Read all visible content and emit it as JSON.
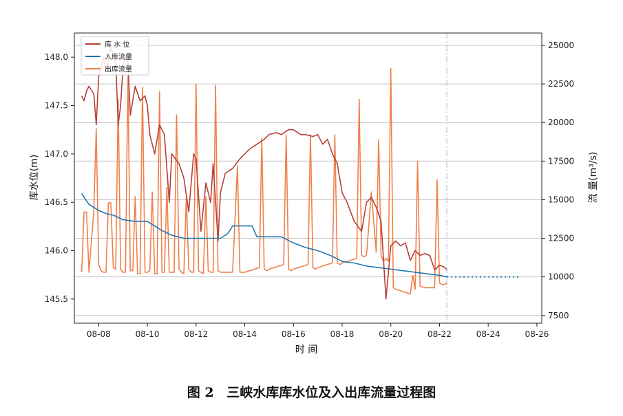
{
  "caption": {
    "fig_no": "图 2",
    "text": "三峡水库库水位及入出库流量过程图"
  },
  "chart_data": {
    "type": "line",
    "xlabel": "时 间",
    "ylabel_left": "库水位(m)",
    "ylabel_right": "流 量(m³/s)",
    "x_ticks": [
      "08-08",
      "08-10",
      "08-12",
      "08-14",
      "08-16",
      "08-18",
      "08-20",
      "08-22",
      "08-24",
      "08-26"
    ],
    "x_range": [
      7.0,
      26.2
    ],
    "y_left_ticks": [
      "148.0",
      "147.5",
      "147.0",
      "146.5",
      "146.0",
      "145.5"
    ],
    "y_left_range": [
      145.25,
      148.25
    ],
    "y_right_ticks": [
      "25000",
      "22500",
      "20000",
      "17500",
      "15000",
      "12500",
      "10000",
      "7500"
    ],
    "y_right_range": [
      7000,
      25800
    ],
    "grid": "horizontal (right axis)",
    "forecast_divider_day": 22.3,
    "legend": {
      "position": "top-left",
      "entries": [
        "库 水 位",
        "入库流量",
        "出库流量"
      ]
    },
    "colors": {
      "level": "#b5403a",
      "inflow": "#1f77b4",
      "outflow": "#f0804a"
    },
    "series": [
      {
        "name": "库 水 位",
        "axis": "left",
        "x": [
          7.3,
          7.4,
          7.5,
          7.6,
          7.8,
          7.9,
          8.0,
          8.1,
          8.2,
          8.3,
          8.5,
          8.7,
          8.8,
          8.9,
          9.0,
          9.1,
          9.2,
          9.3,
          9.5,
          9.7,
          9.9,
          10.0,
          10.1,
          10.3,
          10.5,
          10.7,
          10.9,
          11.0,
          11.3,
          11.5,
          11.7,
          11.9,
          12.0,
          12.2,
          12.4,
          12.6,
          12.7,
          12.9,
          13.0,
          13.2,
          13.5,
          13.8,
          14.0,
          14.2,
          14.5,
          14.8,
          15.0,
          15.3,
          15.5,
          15.8,
          16.0,
          16.3,
          16.5,
          16.8,
          17.0,
          17.2,
          17.4,
          17.6,
          17.8,
          18.0,
          18.2,
          18.5,
          18.8,
          19.0,
          19.2,
          19.4,
          19.6,
          19.8,
          20.0,
          20.2,
          20.4,
          20.6,
          20.8,
          21.0,
          21.2,
          21.4,
          21.6,
          21.8,
          22.0,
          22.2,
          22.3
        ],
        "y": [
          147.6,
          147.55,
          147.65,
          147.7,
          147.62,
          147.3,
          147.8,
          147.9,
          148.0,
          147.85,
          148.1,
          147.95,
          147.3,
          147.5,
          147.9,
          148.0,
          147.95,
          147.4,
          147.7,
          147.55,
          147.6,
          147.5,
          147.2,
          147.0,
          147.3,
          147.2,
          146.5,
          147.0,
          146.9,
          146.75,
          146.4,
          147.0,
          146.95,
          146.2,
          146.7,
          146.5,
          146.9,
          146.1,
          146.6,
          146.8,
          146.85,
          146.95,
          147.0,
          147.05,
          147.1,
          147.15,
          147.2,
          147.22,
          147.2,
          147.25,
          147.25,
          147.2,
          147.2,
          147.18,
          147.2,
          147.1,
          147.15,
          147.0,
          146.9,
          146.6,
          146.5,
          146.3,
          146.2,
          146.5,
          146.55,
          146.45,
          146.3,
          145.5,
          146.05,
          146.1,
          146.05,
          146.08,
          145.9,
          146.0,
          145.95,
          145.97,
          145.95,
          145.8,
          145.85,
          145.83,
          145.8
        ]
      },
      {
        "name": "入库流量",
        "axis": "right",
        "x": [
          7.3,
          7.6,
          8.0,
          8.3,
          8.6,
          9.0,
          9.5,
          10.0,
          10.3,
          10.6,
          11.0,
          11.5,
          12.0,
          12.5,
          13.0,
          13.3,
          13.5,
          13.8,
          14.0,
          14.3,
          14.5,
          15.0,
          15.5,
          16.0,
          16.5,
          17.0,
          17.5,
          18.0,
          18.5,
          19.0,
          19.5,
          20.0,
          20.5,
          21.0,
          21.5,
          22.0,
          22.3
        ],
        "y": [
          15400,
          14700,
          14300,
          14100,
          14000,
          13700,
          13600,
          13600,
          13300,
          13000,
          12700,
          12500,
          12500,
          12500,
          12500,
          12800,
          13300,
          13300,
          13300,
          13300,
          12600,
          12600,
          12600,
          12200,
          11900,
          11700,
          11400,
          11000,
          10900,
          10700,
          10600,
          10500,
          10400,
          10300,
          10200,
          10100,
          10000
        ]
      },
      {
        "name": "入库流量 (预报)",
        "axis": "right",
        "style": "dotted",
        "x": [
          22.3,
          25.3
        ],
        "y": [
          10000,
          10000
        ]
      },
      {
        "name": "出库流量",
        "axis": "right",
        "x": [
          7.3,
          7.4,
          7.5,
          7.6,
          7.8,
          7.9,
          8.0,
          8.1,
          8.2,
          8.3,
          8.4,
          8.5,
          8.6,
          8.7,
          8.8,
          8.9,
          9.0,
          9.1,
          9.2,
          9.3,
          9.4,
          9.5,
          9.6,
          9.7,
          9.8,
          9.9,
          10.0,
          10.1,
          10.2,
          10.3,
          10.4,
          10.5,
          10.6,
          10.7,
          10.8,
          10.9,
          11.0,
          11.1,
          11.2,
          11.3,
          11.4,
          11.5,
          11.6,
          11.7,
          11.8,
          11.9,
          12.0,
          12.1,
          12.2,
          12.3,
          12.4,
          12.5,
          12.6,
          12.7,
          12.8,
          12.9,
          13.0,
          13.1,
          13.3,
          13.5,
          13.7,
          13.8,
          13.9,
          14.0,
          14.2,
          14.4,
          14.6,
          14.7,
          14.8,
          14.9,
          15.0,
          15.2,
          15.4,
          15.6,
          15.7,
          15.8,
          15.9,
          16.0,
          16.2,
          16.4,
          16.6,
          16.7,
          16.8,
          16.9,
          17.0,
          17.2,
          17.4,
          17.6,
          17.7,
          17.8,
          17.9,
          18.0,
          18.2,
          18.4,
          18.6,
          18.7,
          18.8,
          18.9,
          19.0,
          19.2,
          19.4,
          19.5,
          19.6,
          19.7,
          19.8,
          19.9,
          20.0,
          20.1,
          20.2,
          20.4,
          20.6,
          20.8,
          20.9,
          21.0,
          21.1,
          21.2,
          21.4,
          21.6,
          21.8,
          21.9,
          22.0,
          22.1,
          22.2,
          22.3
        ],
        "y": [
          10300,
          14200,
          14200,
          10300,
          14300,
          19600,
          10800,
          10400,
          10300,
          10300,
          14800,
          14800,
          10600,
          10500,
          21500,
          10500,
          10300,
          10300,
          23000,
          10400,
          10400,
          15200,
          10200,
          10200,
          22300,
          10300,
          10300,
          10400,
          15500,
          10200,
          10200,
          22000,
          10300,
          10300,
          15800,
          10300,
          10300,
          10300,
          20500,
          10500,
          10300,
          10200,
          15200,
          10500,
          10300,
          10300,
          22500,
          10400,
          10300,
          10200,
          15200,
          10400,
          10300,
          10300,
          22400,
          10400,
          10300,
          10300,
          10300,
          10300,
          17200,
          10300,
          10300,
          10300,
          10400,
          10500,
          10600,
          19000,
          10500,
          10400,
          10500,
          10600,
          10700,
          10800,
          19200,
          10500,
          10400,
          10500,
          10600,
          10700,
          10800,
          19200,
          10600,
          10500,
          10600,
          10700,
          10800,
          10900,
          19200,
          10900,
          10800,
          10900,
          11000,
          11100,
          11200,
          21500,
          11400,
          11300,
          11400,
          15500,
          11600,
          18900,
          11400,
          11000,
          11200,
          11000,
          23500,
          9300,
          9200,
          9100,
          9000,
          8900,
          10100,
          9200,
          17500,
          9400,
          9300,
          9300,
          9300,
          16300,
          9600,
          9500,
          9500,
          9600
        ]
      }
    ]
  }
}
